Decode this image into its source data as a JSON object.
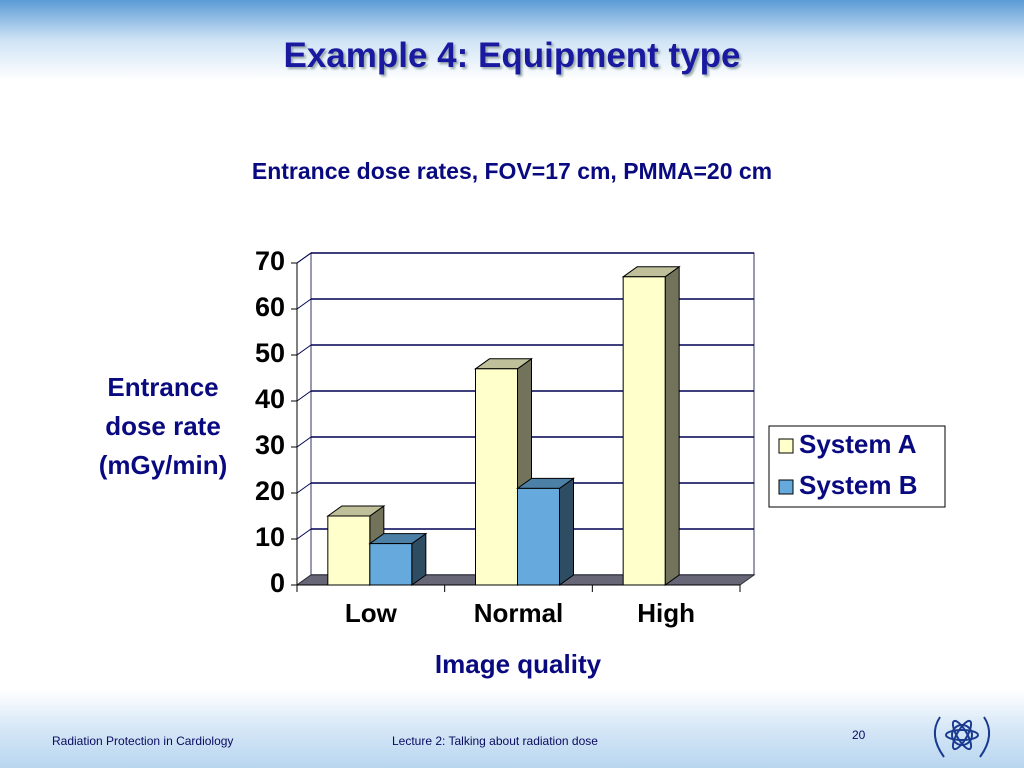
{
  "header": {
    "title": "Example 4: Equipment type"
  },
  "chart_data": {
    "type": "bar3d",
    "title": "Entrance dose rates, FOV=17 cm, PMMA=20 cm",
    "ylabel": "Entrance dose rate (mGy/min)",
    "xlabel": "Image quality",
    "categories": [
      "Low",
      "Normal",
      "High"
    ],
    "series": [
      {
        "name": "System A",
        "color": "#ffffcc",
        "values": [
          15,
          47,
          67
        ]
      },
      {
        "name": "System B",
        "color": "#66aadd",
        "values": [
          9,
          21,
          null
        ]
      }
    ],
    "ylim": [
      0,
      70
    ],
    "yticks": [
      0,
      10,
      20,
      30,
      40,
      50,
      60,
      70
    ],
    "grid": true,
    "legend": "right"
  },
  "footer": {
    "left": "Radiation Protection in Cardiology",
    "center": "Lecture 2: Talking about radiation dose",
    "page": "20"
  }
}
